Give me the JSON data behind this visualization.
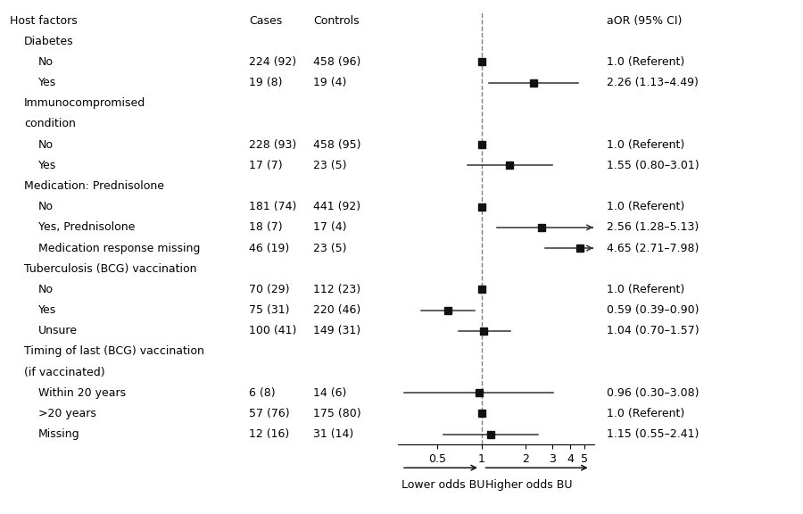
{
  "rows": [
    {
      "label": "Host factors",
      "indent": 0,
      "is_col_header": true,
      "header": false,
      "cases": "Cases",
      "controls": "Controls",
      "or": null,
      "ci_lo": null,
      "ci_hi": null,
      "or_text": "aOR (95% CI)",
      "clipped_hi": false
    },
    {
      "label": "Diabetes",
      "indent": 1,
      "is_col_header": false,
      "header": true,
      "cases": "",
      "controls": "",
      "or": null,
      "ci_lo": null,
      "ci_hi": null,
      "or_text": "",
      "clipped_hi": false
    },
    {
      "label": "No",
      "indent": 2,
      "is_col_header": false,
      "header": false,
      "cases": "224 (92)",
      "controls": "458 (96)",
      "or": 1.0,
      "ci_lo": 1.0,
      "ci_hi": 1.0,
      "or_text": "1.0 (Referent)",
      "clipped_hi": false
    },
    {
      "label": "Yes",
      "indent": 2,
      "is_col_header": false,
      "header": false,
      "cases": "19 (8)",
      "controls": "19 (4)",
      "or": 2.26,
      "ci_lo": 1.13,
      "ci_hi": 4.49,
      "or_text": "2.26 (1.13–4.49)",
      "clipped_hi": false
    },
    {
      "label": "Immunocompromised",
      "indent": 1,
      "is_col_header": false,
      "header": true,
      "cases": "",
      "controls": "",
      "or": null,
      "ci_lo": null,
      "ci_hi": null,
      "or_text": "",
      "clipped_hi": false
    },
    {
      "label": "condition",
      "indent": 1,
      "is_col_header": false,
      "header": true,
      "cases": "",
      "controls": "",
      "or": null,
      "ci_lo": null,
      "ci_hi": null,
      "or_text": "",
      "clipped_hi": false
    },
    {
      "label": "No",
      "indent": 2,
      "is_col_header": false,
      "header": false,
      "cases": "228 (93)",
      "controls": "458 (95)",
      "or": 1.0,
      "ci_lo": 1.0,
      "ci_hi": 1.0,
      "or_text": "1.0 (Referent)",
      "clipped_hi": false
    },
    {
      "label": "Yes",
      "indent": 2,
      "is_col_header": false,
      "header": false,
      "cases": "17 (7)",
      "controls": "23 (5)",
      "or": 1.55,
      "ci_lo": 0.8,
      "ci_hi": 3.01,
      "or_text": "1.55 (0.80–3.01)",
      "clipped_hi": false
    },
    {
      "label": "Medication: Prednisolone",
      "indent": 1,
      "is_col_header": false,
      "header": true,
      "cases": "",
      "controls": "",
      "or": null,
      "ci_lo": null,
      "ci_hi": null,
      "or_text": "",
      "clipped_hi": false
    },
    {
      "label": "No",
      "indent": 2,
      "is_col_header": false,
      "header": false,
      "cases": "181 (74)",
      "controls": "441 (92)",
      "or": 1.0,
      "ci_lo": 1.0,
      "ci_hi": 1.0,
      "or_text": "1.0 (Referent)",
      "clipped_hi": false
    },
    {
      "label": "Yes, Prednisolone",
      "indent": 2,
      "is_col_header": false,
      "header": false,
      "cases": "18 (7)",
      "controls": "17 (4)",
      "or": 2.56,
      "ci_lo": 1.28,
      "ci_hi": 5.13,
      "or_text": "2.56 (1.28–5.13)",
      "clipped_hi": true
    },
    {
      "label": "Medication response missing",
      "indent": 2,
      "is_col_header": false,
      "header": false,
      "cases": "46 (19)",
      "controls": "23 (5)",
      "or": 4.65,
      "ci_lo": 2.71,
      "ci_hi": 7.98,
      "or_text": "4.65 (2.71–7.98)",
      "clipped_hi": true
    },
    {
      "label": "Tuberculosis (BCG) vaccination",
      "indent": 1,
      "is_col_header": false,
      "header": true,
      "cases": "",
      "controls": "",
      "or": null,
      "ci_lo": null,
      "ci_hi": null,
      "or_text": "",
      "clipped_hi": false
    },
    {
      "label": "No",
      "indent": 2,
      "is_col_header": false,
      "header": false,
      "cases": "70 (29)",
      "controls": "112 (23)",
      "or": 1.0,
      "ci_lo": 1.0,
      "ci_hi": 1.0,
      "or_text": "1.0 (Referent)",
      "clipped_hi": false
    },
    {
      "label": "Yes",
      "indent": 2,
      "is_col_header": false,
      "header": false,
      "cases": "75 (31)",
      "controls": "220 (46)",
      "or": 0.59,
      "ci_lo": 0.39,
      "ci_hi": 0.9,
      "or_text": "0.59 (0.39–0.90)",
      "clipped_hi": false
    },
    {
      "label": "Unsure",
      "indent": 2,
      "is_col_header": false,
      "header": false,
      "cases": "100 (41)",
      "controls": "149 (31)",
      "or": 1.04,
      "ci_lo": 0.7,
      "ci_hi": 1.57,
      "or_text": "1.04 (0.70–1.57)",
      "clipped_hi": false
    },
    {
      "label": "Timing of last (BCG) vaccination",
      "indent": 1,
      "is_col_header": false,
      "header": true,
      "cases": "",
      "controls": "",
      "or": null,
      "ci_lo": null,
      "ci_hi": null,
      "or_text": "",
      "clipped_hi": false
    },
    {
      "label": "(if vaccinated)",
      "indent": 1,
      "is_col_header": false,
      "header": true,
      "cases": "",
      "controls": "",
      "or": null,
      "ci_lo": null,
      "ci_hi": null,
      "or_text": "",
      "clipped_hi": false
    },
    {
      "label": "Within 20 years",
      "indent": 2,
      "is_col_header": false,
      "header": false,
      "cases": "6 (8)",
      "controls": "14 (6)",
      "or": 0.96,
      "ci_lo": 0.3,
      "ci_hi": 3.08,
      "or_text": "0.96 (0.30–3.08)",
      "clipped_hi": false
    },
    {
      "label": ">20 years",
      "indent": 2,
      "is_col_header": false,
      "header": false,
      "cases": "57 (76)",
      "controls": "175 (80)",
      "or": 1.0,
      "ci_lo": 1.0,
      "ci_hi": 1.0,
      "or_text": "1.0 (Referent)",
      "clipped_hi": false
    },
    {
      "label": "Missing",
      "indent": 2,
      "is_col_header": false,
      "header": false,
      "cases": "12 (16)",
      "controls": "31 (14)",
      "or": 1.15,
      "ci_lo": 0.55,
      "ci_hi": 2.41,
      "or_text": "1.15 (0.55–2.41)",
      "clipped_hi": false
    }
  ],
  "x_label_left": "Lower odds BU",
  "x_label_right": "Higher odds BU",
  "x_ticks": [
    0.5,
    1,
    2,
    3,
    4,
    5
  ],
  "x_tick_labels": [
    "0.5",
    "1",
    "2",
    "3",
    "4",
    "5"
  ],
  "plot_xlim_lo": 0.27,
  "plot_xlim_hi": 5.8,
  "marker_size": 6,
  "marker_color": "#111111",
  "line_color": "#333333",
  "bg_color": "#ffffff",
  "text_color": "#000000",
  "font_size": 9.0
}
